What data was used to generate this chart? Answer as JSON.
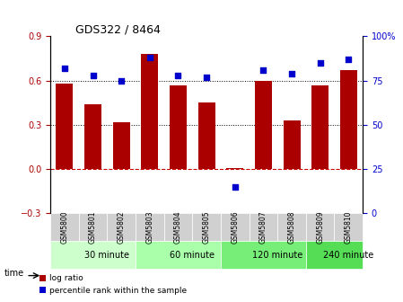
{
  "title": "GDS322 / 8464",
  "samples": [
    "GSM5800",
    "GSM5801",
    "GSM5802",
    "GSM5803",
    "GSM5804",
    "GSM5805",
    "GSM5806",
    "GSM5807",
    "GSM5808",
    "GSM5809",
    "GSM5810"
  ],
  "log_ratio": [
    0.58,
    0.44,
    0.32,
    0.78,
    0.57,
    0.45,
    0.01,
    0.6,
    0.33,
    0.57,
    0.67
  ],
  "percentile": [
    82,
    78,
    75,
    88,
    78,
    77,
    15,
    81,
    79,
    85,
    87
  ],
  "bar_color": "#aa0000",
  "dot_color": "#0000cc",
  "ylim_left": [
    -0.3,
    0.9
  ],
  "ylim_right": [
    0,
    100
  ],
  "yticks_left": [
    -0.3,
    0.0,
    0.3,
    0.6,
    0.9
  ],
  "yticks_right": [
    0,
    25,
    50,
    75,
    100
  ],
  "yticklabels_right": [
    "0",
    "25",
    "50",
    "75",
    "100%"
  ],
  "dotted_lines": [
    0.3,
    0.6
  ],
  "zero_line_color": "#cc0000",
  "groups": [
    {
      "label": "30 minute",
      "start": 0,
      "end": 3,
      "color": "#ccffcc"
    },
    {
      "label": "60 minute",
      "start": 3,
      "end": 6,
      "color": "#aaffaa"
    },
    {
      "label": "120 minute",
      "start": 6,
      "end": 9,
      "color": "#77ee77"
    },
    {
      "label": "240 minute",
      "start": 9,
      "end": 11,
      "color": "#55dd55"
    }
  ],
  "xlabel_time": "time",
  "legend_log_ratio": "log ratio",
  "legend_percentile": "percentile rank within the sample",
  "bg_color": "#ffffff",
  "plot_bg": "#ffffff",
  "tick_label_color_left": "#aa0000",
  "tick_label_color_right": "#0000cc"
}
